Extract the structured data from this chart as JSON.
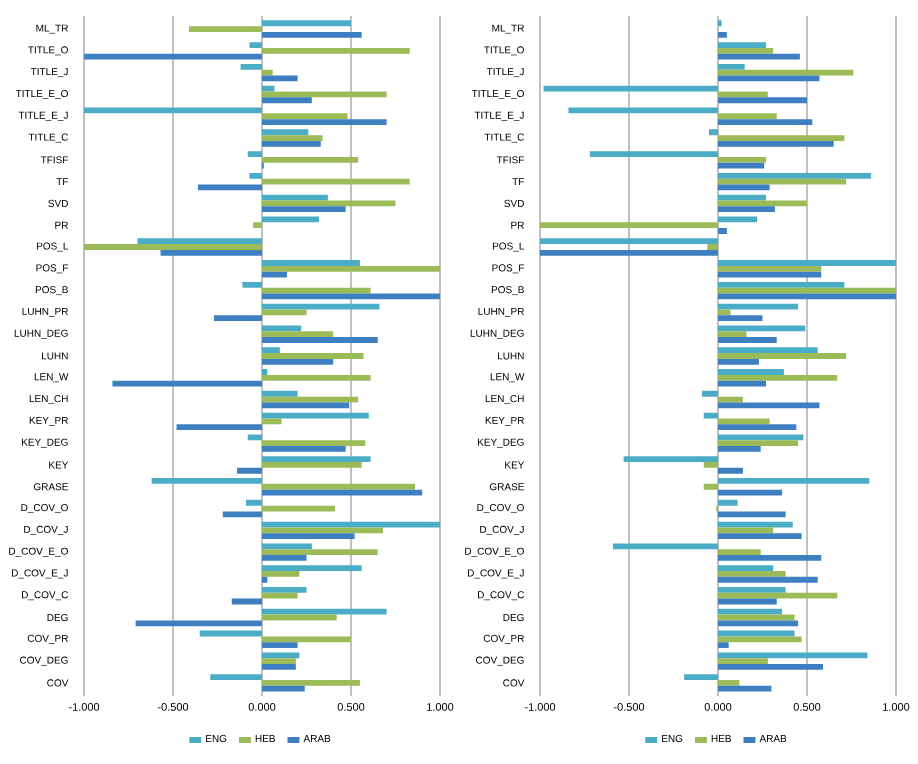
{
  "chart_data": [
    {
      "type": "bar",
      "orientation": "horizontal",
      "grid": "x",
      "legend": "bottom",
      "categories": [
        "ML_TR",
        "TITLE_O",
        "TITLE_J",
        "TITLE_E_O",
        "TITLE_E_J",
        "TITLE_C",
        "TFISF",
        "TF",
        "SVD",
        "PR",
        "POS_L",
        "POS_F",
        "POS_B",
        "LUHN_PR",
        "LUHN_DEG",
        "LUHN",
        "LEN_W",
        "LEN_CH",
        "KEY_PR",
        "KEY_DEG",
        "KEY",
        "GRASE",
        "D_COV_O",
        "D_COV_J",
        "D_COV_E_O",
        "D_COV_E_J",
        "D_COV_C",
        "DEG",
        "COV_PR",
        "COV_DEG",
        "COV"
      ],
      "xlim": [
        -1,
        1
      ],
      "xticks": [
        {
          "value": -1,
          "label": "-1.000"
        },
        {
          "value": -0.5,
          "label": "-0.500"
        },
        {
          "value": 0,
          "label": "0.000"
        },
        {
          "value": 0.5,
          "label": "0.500"
        },
        {
          "value": 1,
          "label": "1.000"
        }
      ],
      "series": [
        {
          "name": "ENG",
          "color": "#4bacc6",
          "values": [
            0.5,
            -0.07,
            -0.12,
            0.07,
            -1.0,
            0.26,
            -0.08,
            -0.07,
            0.37,
            0.32,
            -0.7,
            0.55,
            -0.11,
            0.66,
            0.22,
            0.1,
            0.03,
            0.2,
            0.6,
            -0.08,
            0.61,
            -0.62,
            -0.09,
            1.0,
            0.28,
            0.56,
            0.25,
            0.7,
            -0.35,
            0.21,
            -0.29
          ]
        },
        {
          "name": "HEB",
          "color": "#9bbb59",
          "values": [
            -0.41,
            0.83,
            0.06,
            0.7,
            0.48,
            0.34,
            0.54,
            0.83,
            0.75,
            -0.05,
            -1.0,
            1.0,
            0.61,
            0.25,
            0.4,
            0.57,
            0.61,
            0.54,
            0.11,
            0.58,
            0.56,
            0.86,
            0.41,
            0.68,
            0.65,
            0.21,
            0.2,
            0.42,
            0.5,
            0.19,
            0.55
          ]
        },
        {
          "name": "ARAB",
          "color": "#3d7fc1",
          "values": [
            0.56,
            -1.0,
            0.2,
            0.28,
            0.7,
            0.33,
            0.01,
            -0.36,
            0.47,
            0.0,
            -0.57,
            0.14,
            1.0,
            -0.27,
            0.65,
            0.4,
            -0.84,
            0.49,
            -0.48,
            0.47,
            -0.14,
            0.9,
            -0.22,
            0.52,
            0.25,
            0.03,
            -0.17,
            -0.71,
            0.2,
            0.19,
            0.24
          ]
        }
      ]
    },
    {
      "type": "bar",
      "orientation": "horizontal",
      "grid": "x",
      "legend": "bottom",
      "categories": [
        "ML_TR",
        "TITLE_O",
        "TITLE_J",
        "TITLE_E_O",
        "TITLE_E_J",
        "TITLE_C",
        "TFISF",
        "TF",
        "SVD",
        "PR",
        "POS_L",
        "POS_F",
        "POS_B",
        "LUHN_PR",
        "LUHN_DEG",
        "LUHN",
        "LEN_W",
        "LEN_CH",
        "KEY_PR",
        "KEY_DEG",
        "KEY",
        "GRASE",
        "D_COV_O",
        "D_COV_J",
        "D_COV_E_O",
        "D_COV_E_J",
        "D_COV_C",
        "DEG",
        "COV_PR",
        "COV_DEG",
        "COV"
      ],
      "xlim": [
        -1,
        1
      ],
      "xticks": [
        {
          "value": -1,
          "label": "-1.000"
        },
        {
          "value": -0.5,
          "label": "-0.500"
        },
        {
          "value": 0,
          "label": "0.000"
        },
        {
          "value": 0.5,
          "label": "0.500"
        },
        {
          "value": 1,
          "label": "1.000"
        }
      ],
      "series": [
        {
          "name": "ENG",
          "color": "#4bacc6",
          "values": [
            0.02,
            0.27,
            0.15,
            -0.98,
            -0.84,
            -0.05,
            -0.72,
            0.86,
            0.27,
            0.22,
            -1.0,
            1.0,
            0.71,
            0.45,
            0.49,
            0.56,
            0.37,
            -0.09,
            -0.08,
            0.48,
            -0.53,
            0.85,
            0.11,
            0.42,
            -0.59,
            0.31,
            0.38,
            0.36,
            0.43,
            0.84,
            -0.19
          ]
        },
        {
          "name": "HEB",
          "color": "#9bbb59",
          "values": [
            0.0,
            0.31,
            0.76,
            0.28,
            0.33,
            0.71,
            0.27,
            0.72,
            0.5,
            -1.0,
            -0.06,
            0.58,
            1.0,
            0.07,
            0.16,
            0.72,
            0.67,
            0.14,
            0.29,
            0.45,
            -0.08,
            -0.08,
            -0.01,
            0.31,
            0.24,
            0.38,
            0.67,
            0.43,
            0.47,
            0.28,
            0.12
          ]
        },
        {
          "name": "ARAB",
          "color": "#3d7fc1",
          "values": [
            0.05,
            0.46,
            0.57,
            0.5,
            0.53,
            0.65,
            0.26,
            0.29,
            0.32,
            0.05,
            -1.0,
            0.58,
            1.0,
            0.25,
            0.33,
            0.23,
            0.27,
            0.57,
            0.44,
            0.24,
            0.14,
            0.36,
            0.38,
            0.47,
            0.58,
            0.56,
            0.33,
            0.45,
            0.06,
            0.59,
            0.3
          ]
        }
      ]
    }
  ]
}
